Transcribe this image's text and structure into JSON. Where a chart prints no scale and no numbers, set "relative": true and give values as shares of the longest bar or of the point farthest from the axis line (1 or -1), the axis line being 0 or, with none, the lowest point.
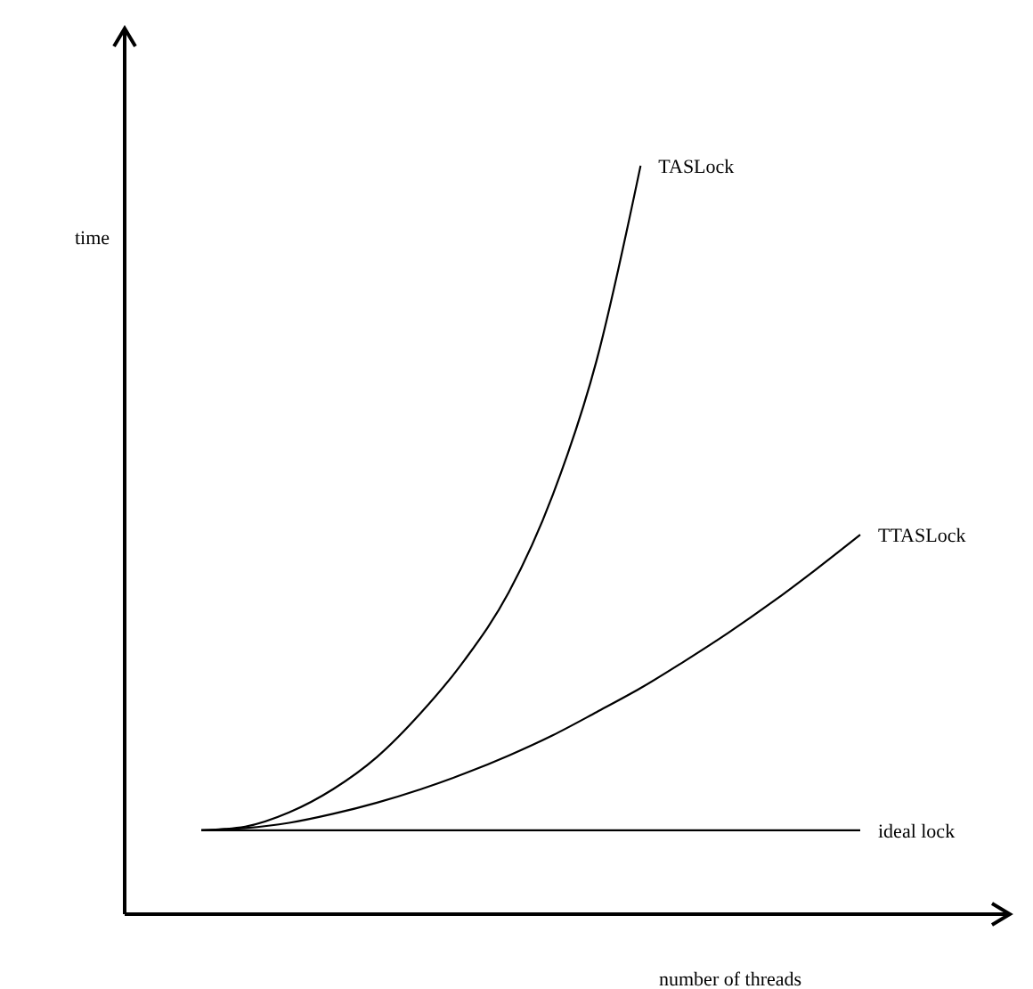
{
  "chart_data": {
    "type": "line",
    "relative": true,
    "xlabel": "number of threads",
    "ylabel": "time",
    "grid": false,
    "legend": false,
    "marker": "none",
    "line_style": "solid",
    "categories": [
      null,
      null,
      null,
      null,
      null,
      null,
      null,
      null,
      null,
      null,
      null,
      null,
      null,
      null,
      null,
      null
    ],
    "series": [
      {
        "name": "TASLock",
        "color": "#000000",
        "values": [
          0.112,
          0.117,
          0.136,
          0.167,
          0.21,
          0.269,
          0.34,
          0.43,
          0.56,
          0.74,
          1,
          null,
          null,
          null,
          null,
          null
        ]
      },
      {
        "name": "TTASLock",
        "color": "#000000",
        "values": [
          0.112,
          0.115,
          0.122,
          0.134,
          0.149,
          0.167,
          0.188,
          0.212,
          0.239,
          0.27,
          0.302,
          0.338,
          0.376,
          0.417,
          0.461,
          0.507
        ]
      },
      {
        "name": "ideal lock",
        "color": "#000000",
        "values": [
          0.112,
          0.112,
          0.112,
          0.112,
          0.112,
          0.112,
          0.112,
          0.112,
          0.112,
          0.112,
          0.112,
          0.112,
          0.112,
          0.112,
          0.112,
          0.112
        ]
      }
    ]
  }
}
